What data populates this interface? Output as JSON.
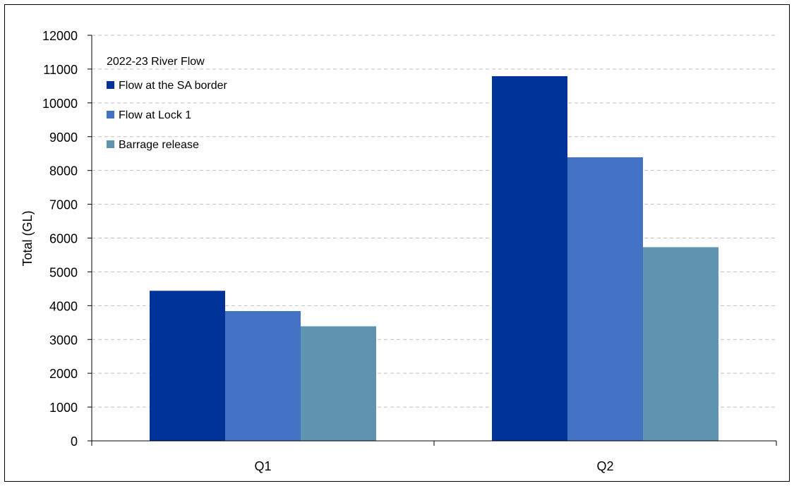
{
  "chart_data": {
    "type": "bar",
    "title": "2022-23  River Flow",
    "categories": [
      "Q1",
      "Q2"
    ],
    "series": [
      {
        "name": "Flow at the SA border",
        "values": [
          4440,
          10790
        ],
        "color": "#003399"
      },
      {
        "name": "Flow at Lock 1",
        "values": [
          3840,
          8390
        ],
        "color": "#4472c4"
      },
      {
        "name": "Barrage release",
        "values": [
          3390,
          5730
        ],
        "color": "#5f93b0"
      }
    ],
    "xlabel": "",
    "ylabel": "Total (GL)",
    "ylim": [
      0,
      12000
    ],
    "yticks": [
      0,
      1000,
      2000,
      3000,
      4000,
      5000,
      6000,
      7000,
      8000,
      9000,
      10000,
      11000,
      12000
    ],
    "grid": true,
    "legend_position": "top-left"
  }
}
